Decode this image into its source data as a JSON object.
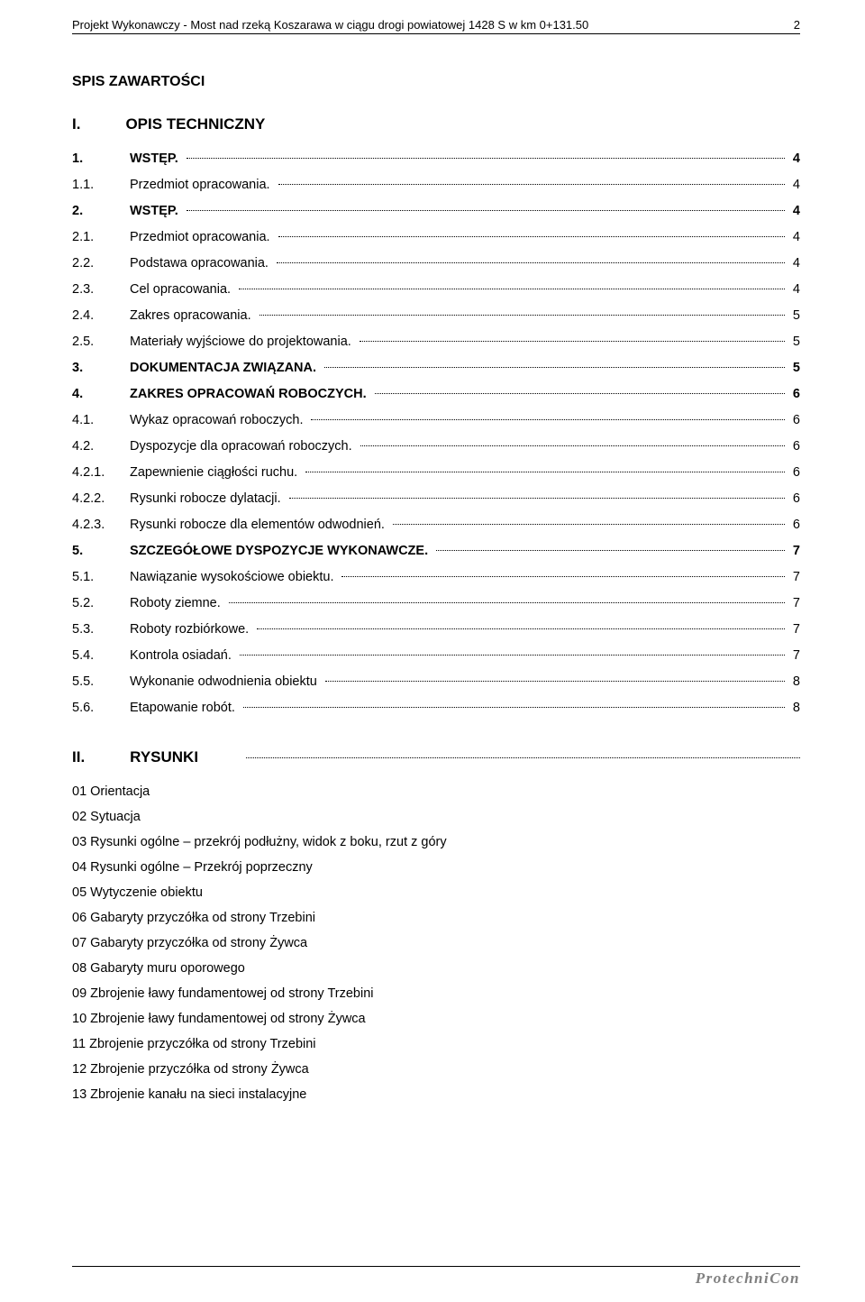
{
  "header": {
    "title": "Projekt Wykonawczy -  Most nad rzeką Koszarawa w ciągu drogi powiatowej 1428 S w km 0+131.50",
    "page_number": "2"
  },
  "section_title": "SPIS ZAWARTOŚCI",
  "part1": {
    "num": "I.",
    "label": "OPIS TECHNICZNY"
  },
  "toc": [
    {
      "num": "1.",
      "text": "WSTĘP.",
      "page": "4",
      "bold": true
    },
    {
      "num": "1.1.",
      "text": "Przedmiot opracowania.",
      "page": "4",
      "bold": false
    },
    {
      "num": "2.",
      "text": "WSTĘP.",
      "page": "4",
      "bold": true
    },
    {
      "num": "2.1.",
      "text": "Przedmiot opracowania.",
      "page": "4",
      "bold": false
    },
    {
      "num": "2.2.",
      "text": "Podstawa opracowania.",
      "page": "4",
      "bold": false
    },
    {
      "num": "2.3.",
      "text": "Cel opracowania.",
      "page": "4",
      "bold": false
    },
    {
      "num": "2.4.",
      "text": "Zakres opracowania.",
      "page": "5",
      "bold": false
    },
    {
      "num": "2.5.",
      "text": "Materiały wyjściowe do projektowania.",
      "page": "5",
      "bold": false
    },
    {
      "num": "3.",
      "text": "DOKUMENTACJA ZWIĄZANA.",
      "page": "5",
      "bold": true
    },
    {
      "num": "4.",
      "text": "ZAKRES OPRACOWAŃ ROBOCZYCH.",
      "page": "6",
      "bold": true
    },
    {
      "num": "4.1.",
      "text": "Wykaz opracowań roboczych.",
      "page": "6",
      "bold": false
    },
    {
      "num": "4.2.",
      "text": "Dyspozycje dla opracowań roboczych.",
      "page": "6",
      "bold": false
    },
    {
      "num": "4.2.1.",
      "text": "Zapewnienie ciągłości ruchu.",
      "page": "6",
      "bold": false
    },
    {
      "num": "4.2.2.",
      "text": "Rysunki robocze dylatacji.",
      "page": "6",
      "bold": false
    },
    {
      "num": "4.2.3.",
      "text": "Rysunki robocze dla elementów odwodnień.",
      "page": "6",
      "bold": false
    },
    {
      "num": "5.",
      "text": "SZCZEGÓŁOWE DYSPOZYCJE WYKONAWCZE.",
      "page": "7",
      "bold": true
    },
    {
      "num": "5.1.",
      "text": "Nawiązanie wysokościowe obiektu.",
      "page": "7",
      "bold": false
    },
    {
      "num": "5.2.",
      "text": "Roboty ziemne.",
      "page": "7",
      "bold": false
    },
    {
      "num": "5.3.",
      "text": "Roboty rozbiórkowe.",
      "page": "7",
      "bold": false
    },
    {
      "num": "5.4.",
      "text": "Kontrola osiadań.",
      "page": "7",
      "bold": false
    },
    {
      "num": "5.5.",
      "text": "Wykonanie odwodnienia obiektu",
      "page": "8",
      "bold": false
    },
    {
      "num": "5.6.",
      "text": "Etapowanie robót.",
      "page": "8",
      "bold": false
    }
  ],
  "part2": {
    "num": "II.",
    "label": "RYSUNKI"
  },
  "drawings": [
    "01 Orientacja",
    "02 Sytuacja",
    "03 Rysunki ogólne – przekrój podłużny, widok z boku, rzut z góry",
    "04 Rysunki ogólne – Przekrój poprzeczny",
    "05 Wytyczenie obiektu",
    "06 Gabaryty przyczółka od strony Trzebini",
    "07 Gabaryty przyczółka od strony Żywca",
    "08 Gabaryty muru oporowego",
    "09  Zbrojenie ławy fundamentowej od strony Trzebini",
    "10  Zbrojenie ławy fundamentowej od strony Żywca",
    "11 Zbrojenie przyczółka od strony Trzebini",
    "12 Zbrojenie przyczółka od strony Żywca",
    "13 Zbrojenie kanału na sieci instalacyjne"
  ],
  "footer": "ProtechniCon"
}
